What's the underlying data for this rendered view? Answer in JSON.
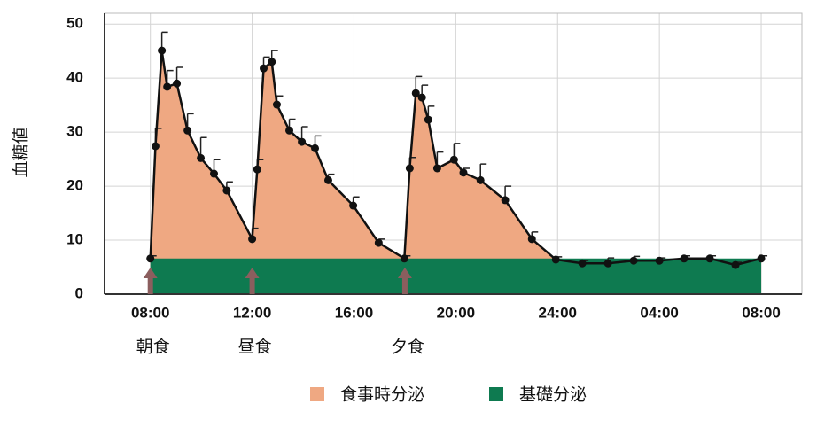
{
  "chart_data": {
    "type": "line",
    "y_label": "血糖値",
    "xlim": [
      6.2,
      33.6
    ],
    "ylim": [
      0,
      52
    ],
    "xticks": [
      {
        "value": 8,
        "label": "08:00"
      },
      {
        "value": 12,
        "label": "12:00"
      },
      {
        "value": 16,
        "label": "16:00"
      },
      {
        "value": 20,
        "label": "20:00"
      },
      {
        "value": 24,
        "label": "24:00"
      },
      {
        "value": 28,
        "label": "04:00"
      },
      {
        "value": 32,
        "label": "08:00"
      }
    ],
    "yticks": [
      0,
      10,
      20,
      30,
      40,
      50
    ],
    "grid": true,
    "series": [
      {
        "name": "食事時分泌",
        "color": "#efa882",
        "line_color": "#111111",
        "x": [
          8.0,
          8.2,
          8.45,
          8.66,
          9.04,
          9.46,
          9.98,
          10.5,
          11.0,
          12.0,
          12.2,
          12.45,
          12.77,
          12.97,
          13.46,
          13.95,
          14.47,
          14.99,
          15.97,
          16.97,
          17.98,
          18.19,
          18.43,
          18.67,
          18.92,
          19.27,
          19.93,
          20.3,
          20.97,
          21.94,
          22.99,
          23.93,
          24.97,
          25.98,
          26.99,
          28.0,
          28.97,
          29.98,
          30.99,
          32.0
        ],
        "values": [
          6.6,
          27.4,
          45.1,
          38.4,
          39.0,
          30.3,
          25.2,
          22.3,
          19.2,
          10.2,
          23.1,
          41.8,
          43.0,
          35.1,
          30.3,
          28.2,
          27.0,
          21.1,
          16.4,
          9.5,
          6.6,
          23.3,
          37.2,
          36.4,
          32.3,
          23.3,
          24.9,
          22.5,
          21.1,
          17.4,
          10.2,
          6.4,
          5.7,
          5.7,
          6.2,
          6.2,
          6.6,
          6.6,
          5.4,
          6.6
        ],
        "errors": [
          0.5,
          3.3,
          3.4,
          3.0,
          3.0,
          3.1,
          3.8,
          2.6,
          1.6,
          2.0,
          1.8,
          2.1,
          2.1,
          1.6,
          2.1,
          2.8,
          2.3,
          1.1,
          1.6,
          0.7,
          0.5,
          2.0,
          3.1,
          2.3,
          2.5,
          3.0,
          3.0,
          0.8,
          3.0,
          2.6,
          1.3,
          0.5,
          0.5,
          1.0,
          0.8,
          0.5,
          0.5,
          0.5,
          0.5,
          0.5
        ]
      },
      {
        "name": "基礎分泌",
        "color": "#0e7a50",
        "x": [
          8,
          32
        ],
        "values": [
          6.6,
          6.6
        ]
      }
    ],
    "meals": [
      {
        "x": 8,
        "label": "朝食"
      },
      {
        "x": 12,
        "label": "昼食"
      },
      {
        "x": 18,
        "label": "夕食"
      }
    ],
    "arrow_color": "#8b5e5e"
  }
}
